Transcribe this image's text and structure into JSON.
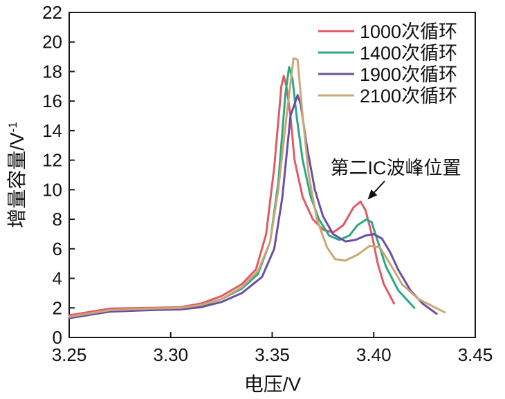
{
  "chart_data": {
    "type": "line",
    "xlabel": "电压/V",
    "ylabel": "增量容量/V",
    "ylabel_sup": "-1",
    "xlim": [
      3.25,
      3.45
    ],
    "ylim": [
      0,
      22
    ],
    "x_ticks": [
      "3.25",
      "3.30",
      "3.35",
      "3.40",
      "3.45"
    ],
    "y_ticks": [
      "0",
      "2",
      "4",
      "6",
      "8",
      "10",
      "12",
      "14",
      "16",
      "18",
      "20",
      "22"
    ],
    "grid": false,
    "legend_position": "top-right",
    "annotation": {
      "text": "第二IC波峰位置",
      "target": {
        "x": 3.396,
        "y": 9.2
      }
    },
    "series": [
      {
        "name": "1000次循环",
        "color": "#e05a63",
        "points": [
          [
            3.25,
            1.5
          ],
          [
            3.27,
            1.95
          ],
          [
            3.29,
            2.0
          ],
          [
            3.305,
            2.05
          ],
          [
            3.315,
            2.3
          ],
          [
            3.325,
            2.8
          ],
          [
            3.335,
            3.6
          ],
          [
            3.342,
            4.6
          ],
          [
            3.347,
            7.0
          ],
          [
            3.351,
            11.5
          ],
          [
            3.3545,
            17.0
          ],
          [
            3.3557,
            17.7
          ],
          [
            3.357,
            17.0
          ],
          [
            3.359,
            15.0
          ],
          [
            3.361,
            12.0
          ],
          [
            3.365,
            9.5
          ],
          [
            3.37,
            8.0
          ],
          [
            3.375,
            7.3
          ],
          [
            3.38,
            7.1
          ],
          [
            3.385,
            7.6
          ],
          [
            3.39,
            8.8
          ],
          [
            3.3935,
            9.2
          ],
          [
            3.396,
            8.6
          ],
          [
            3.399,
            7.0
          ],
          [
            3.402,
            5.0
          ],
          [
            3.405,
            3.6
          ],
          [
            3.41,
            2.3
          ]
        ]
      },
      {
        "name": "1400次循环",
        "color": "#2aa882",
        "points": [
          [
            3.25,
            1.35
          ],
          [
            3.27,
            1.8
          ],
          [
            3.29,
            1.9
          ],
          [
            3.305,
            1.95
          ],
          [
            3.315,
            2.15
          ],
          [
            3.325,
            2.6
          ],
          [
            3.335,
            3.3
          ],
          [
            3.343,
            4.3
          ],
          [
            3.349,
            6.5
          ],
          [
            3.353,
            10.5
          ],
          [
            3.3565,
            16.5
          ],
          [
            3.3583,
            18.3
          ],
          [
            3.36,
            17.5
          ],
          [
            3.362,
            15.0
          ],
          [
            3.365,
            12.0
          ],
          [
            3.369,
            9.5
          ],
          [
            3.373,
            8.0
          ],
          [
            3.378,
            6.9
          ],
          [
            3.383,
            6.6
          ],
          [
            3.388,
            6.9
          ],
          [
            3.392,
            7.6
          ],
          [
            3.3965,
            8.0
          ],
          [
            3.399,
            7.8
          ],
          [
            3.402,
            6.5
          ],
          [
            3.406,
            4.8
          ],
          [
            3.412,
            3.2
          ],
          [
            3.42,
            2.0
          ]
        ]
      },
      {
        "name": "1900次循环",
        "color": "#6a4ea2",
        "points": [
          [
            3.25,
            1.3
          ],
          [
            3.27,
            1.75
          ],
          [
            3.29,
            1.85
          ],
          [
            3.305,
            1.9
          ],
          [
            3.315,
            2.05
          ],
          [
            3.325,
            2.4
          ],
          [
            3.335,
            3.0
          ],
          [
            3.345,
            4.1
          ],
          [
            3.351,
            6.0
          ],
          [
            3.355,
            9.5
          ],
          [
            3.359,
            15.0
          ],
          [
            3.3625,
            16.4
          ],
          [
            3.364,
            15.8
          ],
          [
            3.367,
            13.0
          ],
          [
            3.371,
            10.0
          ],
          [
            3.375,
            8.2
          ],
          [
            3.38,
            7.0
          ],
          [
            3.386,
            6.5
          ],
          [
            3.391,
            6.6
          ],
          [
            3.396,
            6.9
          ],
          [
            3.4,
            7.0
          ],
          [
            3.404,
            6.7
          ],
          [
            3.408,
            5.8
          ],
          [
            3.412,
            4.6
          ],
          [
            3.418,
            3.2
          ],
          [
            3.424,
            2.3
          ],
          [
            3.431,
            1.6
          ]
        ]
      },
      {
        "name": "2100次循环",
        "color": "#c8a878",
        "points": [
          [
            3.25,
            1.4
          ],
          [
            3.27,
            1.85
          ],
          [
            3.29,
            1.95
          ],
          [
            3.305,
            2.0
          ],
          [
            3.315,
            2.2
          ],
          [
            3.325,
            2.6
          ],
          [
            3.335,
            3.4
          ],
          [
            3.343,
            4.5
          ],
          [
            3.349,
            6.5
          ],
          [
            3.353,
            10.0
          ],
          [
            3.3575,
            15.5
          ],
          [
            3.3605,
            18.9
          ],
          [
            3.3625,
            18.8
          ],
          [
            3.365,
            15.0
          ],
          [
            3.368,
            11.0
          ],
          [
            3.372,
            8.0
          ],
          [
            3.377,
            6.1
          ],
          [
            3.381,
            5.3
          ],
          [
            3.386,
            5.2
          ],
          [
            3.392,
            5.6
          ],
          [
            3.398,
            6.2
          ],
          [
            3.403,
            6.1
          ],
          [
            3.408,
            5.0
          ],
          [
            3.414,
            3.6
          ],
          [
            3.422,
            2.6
          ],
          [
            3.435,
            1.7
          ]
        ]
      }
    ]
  }
}
